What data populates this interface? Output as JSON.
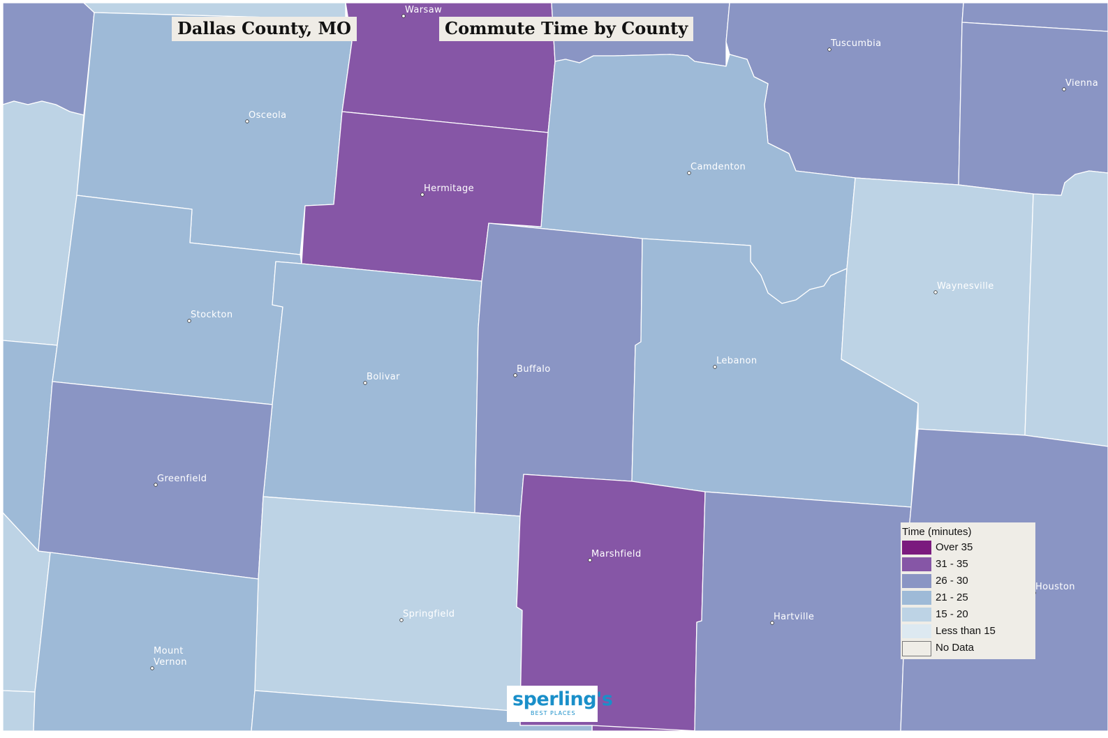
{
  "header": {
    "place_title": "Dallas County, MO",
    "map_title": "Commute Time by County"
  },
  "legend": {
    "title": "Time (minutes)",
    "items": [
      {
        "label": "Over 35",
        "color": "#7b1a7e"
      },
      {
        "label": "31 - 35",
        "color": "#8656a6"
      },
      {
        "label": "26 - 30",
        "color": "#8a95c4"
      },
      {
        "label": "21 - 25",
        "color": "#9ebad7"
      },
      {
        "label": "15 - 20",
        "color": "#bdd3e5"
      },
      {
        "label": "Less than 15",
        "color": "#dde9f1"
      },
      {
        "label": "No Data",
        "color": "#efede7"
      }
    ]
  },
  "cities": [
    {
      "name": "Warsaw",
      "lines": [
        "Warsaw"
      ]
    },
    {
      "name": "Osceola",
      "lines": [
        "Osceola"
      ]
    },
    {
      "name": "Tuscumbia",
      "lines": [
        "Tuscumbia"
      ]
    },
    {
      "name": "Vienna",
      "lines": [
        "Vienna"
      ]
    },
    {
      "name": "Camdenton",
      "lines": [
        "Camdenton"
      ]
    },
    {
      "name": "Hermitage",
      "lines": [
        "Hermitage"
      ]
    },
    {
      "name": "Stockton",
      "lines": [
        "Stockton"
      ]
    },
    {
      "name": "Waynesville",
      "lines": [
        "Waynesville"
      ]
    },
    {
      "name": "Bolivar",
      "lines": [
        "Bolivar"
      ]
    },
    {
      "name": "Buffalo",
      "lines": [
        "Buffalo"
      ]
    },
    {
      "name": "Lebanon",
      "lines": [
        "Lebanon"
      ]
    },
    {
      "name": "Greenfield",
      "lines": [
        "Greenfield"
      ]
    },
    {
      "name": "Marshfield",
      "lines": [
        "Marshfield"
      ]
    },
    {
      "name": "Houston",
      "lines": [
        "Houston"
      ]
    },
    {
      "name": "Springfield",
      "lines": [
        "Springfield"
      ]
    },
    {
      "name": "Hartville",
      "lines": [
        "Hartville"
      ]
    },
    {
      "name": "Mount Vernon",
      "lines": [
        "Mount",
        "Vernon"
      ]
    }
  ],
  "logo": {
    "brand": "sperling's",
    "tagline": "BEST PLACES"
  }
}
